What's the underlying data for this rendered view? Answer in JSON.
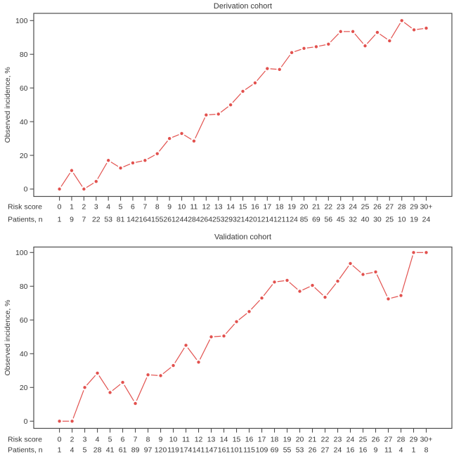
{
  "figure": {
    "background_color": "#ffffff",
    "accent_color": "#e2514e",
    "axis_color": "#4c4c4c",
    "text_color": "#383838"
  },
  "chart_data": [
    {
      "type": "line",
      "title": "Derivation cohort",
      "ylabel": "Observed incidence, %",
      "xlabel": "",
      "row_labels": {
        "risk": "Risk score",
        "patients": "Patients, n"
      },
      "ylim": [
        0,
        100
      ],
      "yticks": [
        0,
        20,
        40,
        60,
        80,
        100
      ],
      "grid": false,
      "legend": "none",
      "marker": "filled-circle-with-gapped-connectors",
      "line_color": "#e2514e",
      "categories": [
        "0",
        "1",
        "2",
        "3",
        "4",
        "5",
        "6",
        "7",
        "8",
        "9",
        "10",
        "11",
        "12",
        "13",
        "14",
        "15",
        "16",
        "17",
        "18",
        "19",
        "20",
        "21",
        "22",
        "23",
        "24",
        "25",
        "26",
        "27",
        "28",
        "29",
        "30+"
      ],
      "values": [
        0,
        11,
        0,
        4.5,
        17,
        12.5,
        15.5,
        17,
        21,
        30,
        33,
        28.5,
        44,
        44.5,
        50,
        58,
        63,
        71.5,
        71,
        81,
        83.5,
        84.5,
        86,
        93.5,
        93.5,
        85,
        93,
        88,
        100,
        94.5,
        95.5
      ],
      "patients": [
        "1",
        "9",
        "7",
        "22",
        "53",
        "81",
        "142",
        "164",
        "155",
        "261",
        "244",
        "284",
        "264",
        "253",
        "293",
        "214",
        "201",
        "214",
        "121",
        "124",
        "85",
        "69",
        "56",
        "45",
        "32",
        "40",
        "30",
        "25",
        "10",
        "19",
        "24"
      ]
    },
    {
      "type": "line",
      "title": "Validation cohort",
      "ylabel": "Observed incidence, %",
      "xlabel": "",
      "row_labels": {
        "risk": "Risk score",
        "patients": "Patients, n"
      },
      "ylim": [
        0,
        100
      ],
      "yticks": [
        0,
        20,
        40,
        60,
        80,
        100
      ],
      "grid": false,
      "legend": "none",
      "marker": "filled-circle-with-gapped-connectors",
      "line_color": "#e2514e",
      "categories": [
        "0",
        "2",
        "3",
        "4",
        "5",
        "6",
        "7",
        "8",
        "9",
        "10",
        "11",
        "12",
        "13",
        "14",
        "15",
        "16",
        "17",
        "18",
        "19",
        "20",
        "21",
        "22",
        "23",
        "24",
        "25",
        "26",
        "27",
        "28",
        "29",
        "30+"
      ],
      "values": [
        0,
        0,
        20,
        28.5,
        17,
        23,
        10.5,
        27.5,
        27,
        33,
        45,
        35,
        50,
        50.5,
        59,
        65,
        73,
        82.5,
        83.5,
        77,
        80.5,
        73.5,
        83,
        93.5,
        87,
        88.5,
        72.5,
        74.5,
        100,
        100
      ],
      "patients": [
        "1",
        "4",
        "5",
        "28",
        "41",
        "61",
        "89",
        "97",
        "120",
        "119",
        "174",
        "141",
        "147",
        "161",
        "101",
        "115",
        "109",
        "69",
        "55",
        "53",
        "26",
        "27",
        "24",
        "16",
        "16",
        "9",
        "11",
        "4",
        "1",
        "8"
      ]
    }
  ]
}
